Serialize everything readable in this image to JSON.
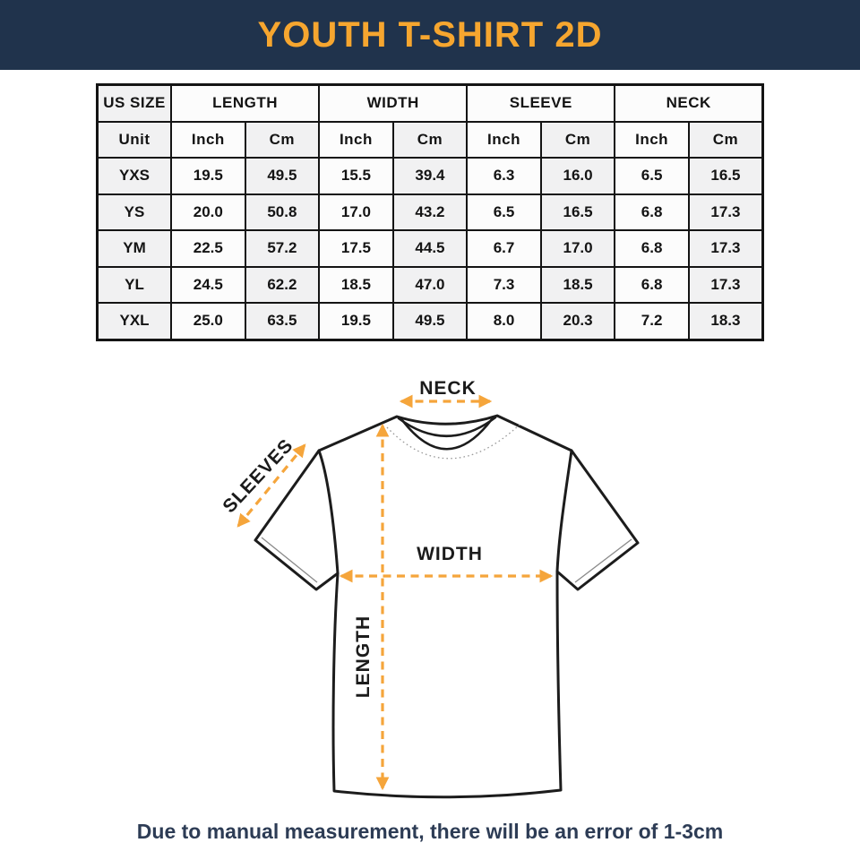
{
  "header": {
    "title": "YOUTH T-SHIRT 2D"
  },
  "theme": {
    "header_bg": "#20334C",
    "title_color": "#F6A62F",
    "accent": "#F5A53B",
    "note_color": "#2D3C55",
    "outline": "#1C1C1C",
    "table_border": "#141414"
  },
  "size_table": {
    "group_headers": [
      {
        "label": "US SIZE",
        "span": 1
      },
      {
        "label": "LENGTH",
        "span": 2
      },
      {
        "label": "WIDTH",
        "span": 2
      },
      {
        "label": "SLEEVE",
        "span": 2
      },
      {
        "label": "NECK",
        "span": 2
      }
    ],
    "unit_row": [
      "Unit",
      "Inch",
      "Cm",
      "Inch",
      "Cm",
      "Inch",
      "Cm",
      "Inch",
      "Cm"
    ],
    "rows": [
      {
        "size": "YXS",
        "values": [
          "19.5",
          "49.5",
          "15.5",
          "39.4",
          "6.3",
          "16.0",
          "6.5",
          "16.5"
        ]
      },
      {
        "size": "YS",
        "values": [
          "20.0",
          "50.8",
          "17.0",
          "43.2",
          "6.5",
          "16.5",
          "6.8",
          "17.3"
        ]
      },
      {
        "size": "YM",
        "values": [
          "22.5",
          "57.2",
          "17.5",
          "44.5",
          "6.7",
          "17.0",
          "6.8",
          "17.3"
        ]
      },
      {
        "size": "YL",
        "values": [
          "24.5",
          "62.2",
          "18.5",
          "47.0",
          "7.3",
          "18.5",
          "6.8",
          "17.3"
        ]
      },
      {
        "size": "YXL",
        "values": [
          "25.0",
          "63.5",
          "19.5",
          "49.5",
          "8.0",
          "20.3",
          "7.2",
          "18.3"
        ]
      }
    ]
  },
  "diagram": {
    "labels": {
      "neck": "NECK",
      "sleeves": "SLEEVES",
      "width": "WIDTH",
      "length": "LENGTH"
    }
  },
  "footer": {
    "note": "Due to manual measurement, there will be an error of 1-3cm"
  }
}
